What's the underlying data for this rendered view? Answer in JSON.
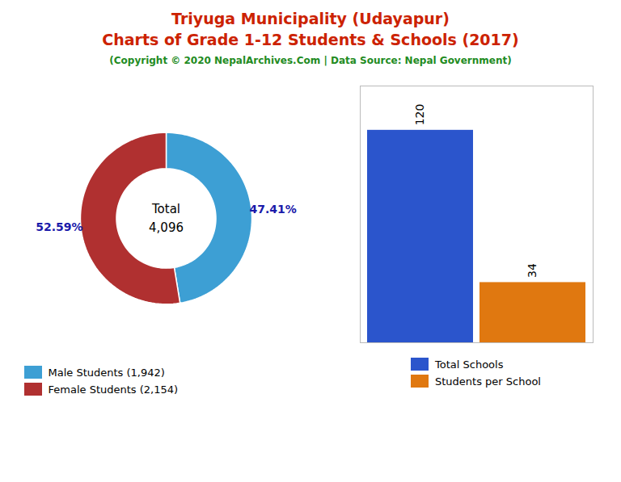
{
  "title": [
    "Triyuga Municipality (Udayapur)",
    "Charts of Grade 1-12 Students & Schools (2017)"
  ],
  "subtitle": "(Copyright © 2020 NepalArchives.Com | Data Source: Nepal Government)",
  "chart_data": [
    {
      "type": "pie",
      "categories": [
        "Male Students (1,942)",
        "Female Students (2,154)"
      ],
      "values": [
        47.41,
        52.59
      ],
      "value_labels": [
        "47.41%",
        "52.59%"
      ],
      "data_labels": true,
      "colors": [
        "#3d9fd4",
        "#b03030"
      ],
      "annotations": [
        "Total",
        "4,096"
      ],
      "legend": "lower left"
    },
    {
      "type": "bar",
      "categories": [
        "Total Schools",
        "Students per School"
      ],
      "values": [
        120,
        34
      ],
      "colors": [
        "#2b55cc",
        "#e07810"
      ],
      "ylim": [
        0,
        145
      ],
      "yticks": [],
      "tick_labels": false,
      "data_labels": true,
      "legend": "bottom"
    }
  ]
}
